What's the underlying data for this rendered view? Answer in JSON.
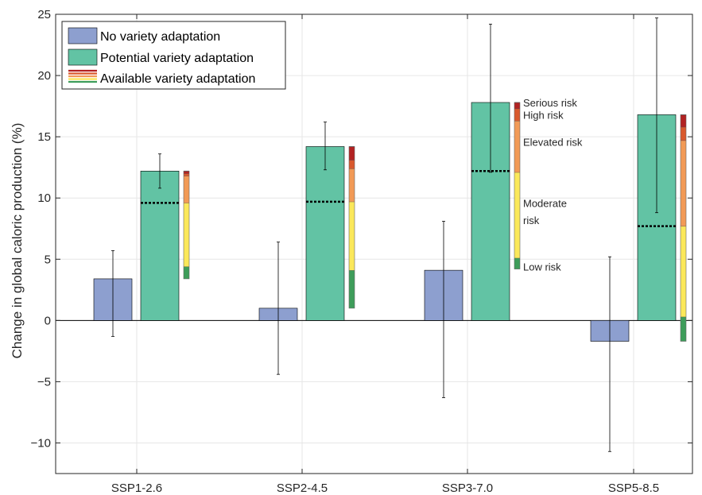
{
  "chart_data": {
    "type": "bar",
    "title": "",
    "xlabel": "",
    "ylabel": "Change in global caloric production (%)",
    "ylim": [
      -12.5,
      25
    ],
    "yticks": [
      25,
      20,
      15,
      10,
      5,
      0,
      -5,
      -10
    ],
    "ytick_labels": [
      "25",
      "20",
      "15",
      "10",
      "5",
      "0",
      "−5",
      "−10"
    ],
    "grid": true,
    "legend_position": "top-left",
    "categories": [
      "SSP1-2.6",
      "SSP2-4.5",
      "SSP3-7.0",
      "SSP5-8.5"
    ],
    "series": [
      {
        "name": "No variety adaptation",
        "color": "#8d9fcf",
        "values": [
          3.4,
          1.0,
          4.1,
          -1.7
        ],
        "error_low": [
          -1.3,
          -4.4,
          -6.3,
          -10.7
        ],
        "error_high": [
          5.7,
          6.4,
          8.1,
          5.2
        ]
      },
      {
        "name": "Potential variety adaptation",
        "color": "#62c3a4",
        "values": [
          12.2,
          14.2,
          17.8,
          16.8
        ],
        "error_low": [
          10.8,
          12.3,
          12.1,
          8.8
        ],
        "error_high": [
          13.6,
          16.2,
          24.2,
          24.7
        ],
        "median": [
          9.6,
          9.7,
          12.2,
          7.7
        ]
      }
    ],
    "available_variety_adaptation": {
      "name": "Available variety adaptation",
      "risk_segments": [
        {
          "name": "Low risk",
          "color": "#3e9d5a"
        },
        {
          "name": "Moderate risk",
          "color": "#fbe85a"
        },
        {
          "name": "Elevated risk",
          "color": "#f29a56"
        },
        {
          "name": "High risk",
          "color": "#d9592d"
        },
        {
          "name": "Serious risk",
          "color": "#b22222"
        }
      ],
      "stacks": [
        {
          "category": "SSP1-2.6",
          "bounds": [
            3.4,
            4.4,
            9.6,
            11.8,
            12.0,
            12.2
          ]
        },
        {
          "category": "SSP2-4.5",
          "bounds": [
            1.0,
            4.1,
            9.7,
            12.4,
            13.1,
            14.2
          ]
        },
        {
          "category": "SSP3-7.0",
          "bounds": [
            4.2,
            5.1,
            12.1,
            16.3,
            17.3,
            17.8
          ]
        },
        {
          "category": "SSP5-8.5",
          "bounds": [
            -1.7,
            0.3,
            7.7,
            14.7,
            15.8,
            16.8
          ]
        }
      ]
    },
    "risk_labels": [
      {
        "text": "Serious risk",
        "y": 17.8
      },
      {
        "text": "High risk",
        "y": 16.8
      },
      {
        "text": "Elevated risk",
        "y": 14.6
      },
      {
        "text": "Moderate",
        "y": 9.6
      },
      {
        "text": "risk",
        "y": 8.2
      },
      {
        "text": "Low risk",
        "y": 4.4
      }
    ]
  }
}
